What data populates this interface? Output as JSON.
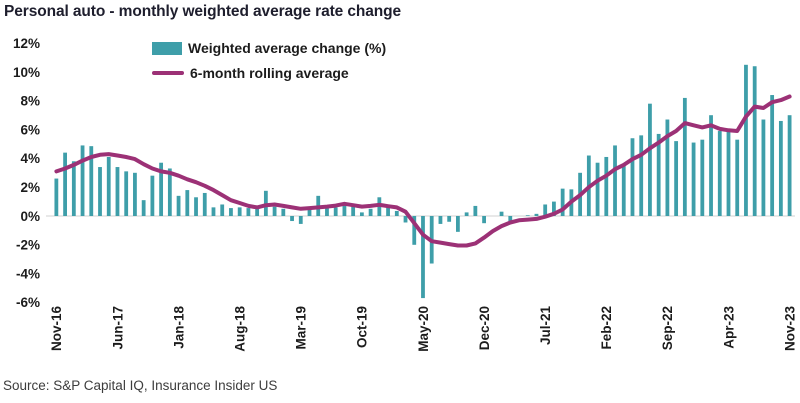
{
  "title": "Personal auto - monthly weighted average rate change",
  "source": "Source: S&P Capital IQ, Insurance Insider US",
  "legend": {
    "bar_label": "Weighted average change (%)",
    "line_label": "6-month rolling average"
  },
  "colors": {
    "bar": "#3E9EA9",
    "line": "#9C3176",
    "title_text": "#1E1E2D",
    "axis_text": "#1C1C1C",
    "zero_line": "#D9D9D9",
    "source_text": "#3D3D3D",
    "background": "#FFFFFF"
  },
  "chart_data": {
    "type": "bar",
    "title": "Personal auto - monthly weighted average rate change",
    "xlabel": "",
    "ylabel": "",
    "ylim": [
      -6.5,
      12
    ],
    "grid": false,
    "legend_position": "top-left-inset",
    "y_tick_values": [
      12,
      10,
      8,
      6,
      4,
      2,
      0,
      -2,
      -4,
      -6
    ],
    "y_tick_labels": [
      "12%",
      "10%",
      "8%",
      "6%",
      "4%",
      "2%",
      "0%",
      "-2%",
      "-4%",
      "-6%"
    ],
    "x_tick_indices": [
      0,
      7,
      14,
      21,
      28,
      35,
      42,
      49,
      56,
      63,
      70,
      77,
      84
    ],
    "x_tick_labels": [
      "Nov-16",
      "Jun-17",
      "Jan-18",
      "Aug-18",
      "Mar-19",
      "Oct-19",
      "May-20",
      "Dec-20",
      "Jul-21",
      "Feb-22",
      "Sep-22",
      "Apr-23",
      "Nov-23"
    ],
    "categories": [
      "Nov-16",
      "Dec-16",
      "Jan-17",
      "Feb-17",
      "Mar-17",
      "Apr-17",
      "May-17",
      "Jun-17",
      "Jul-17",
      "Aug-17",
      "Sep-17",
      "Oct-17",
      "Nov-17",
      "Dec-17",
      "Jan-18",
      "Feb-18",
      "Mar-18",
      "Apr-18",
      "May-18",
      "Jun-18",
      "Jul-18",
      "Aug-18",
      "Sep-18",
      "Oct-18",
      "Nov-18",
      "Dec-18",
      "Jan-19",
      "Feb-19",
      "Mar-19",
      "Apr-19",
      "May-19",
      "Jun-19",
      "Jul-19",
      "Aug-19",
      "Sep-19",
      "Oct-19",
      "Nov-19",
      "Dec-19",
      "Jan-20",
      "Feb-20",
      "Mar-20",
      "Apr-20",
      "May-20",
      "Jun-20",
      "Jul-20",
      "Aug-20",
      "Sep-20",
      "Oct-20",
      "Nov-20",
      "Dec-20",
      "Jan-21",
      "Feb-21",
      "Mar-21",
      "Apr-21",
      "May-21",
      "Jun-21",
      "Jul-21",
      "Aug-21",
      "Sep-21",
      "Oct-21",
      "Nov-21",
      "Dec-21",
      "Jan-22",
      "Feb-22",
      "Mar-22",
      "Apr-22",
      "May-22",
      "Jun-22",
      "Jul-22",
      "Aug-22",
      "Sep-22",
      "Oct-22",
      "Nov-22",
      "Dec-22",
      "Jan-23",
      "Feb-23",
      "Mar-23",
      "Apr-23",
      "May-23",
      "Jun-23",
      "Jul-23",
      "Aug-23",
      "Sep-23",
      "Oct-23",
      "Nov-23"
    ],
    "series": [
      {
        "name": "Weighted average change (%)",
        "type": "bar",
        "values": [
          2.6,
          4.4,
          3.8,
          4.9,
          4.85,
          3.4,
          4.1,
          3.4,
          3.1,
          3.0,
          1.1,
          2.8,
          3.7,
          3.3,
          1.4,
          1.8,
          1.3,
          1.6,
          0.6,
          0.8,
          0.55,
          0.6,
          0.55,
          0.6,
          1.75,
          0.65,
          0.5,
          -0.35,
          -0.55,
          0.45,
          1.4,
          0.7,
          0.6,
          0.8,
          0.7,
          0.25,
          0.5,
          1.3,
          0.6,
          0.35,
          -0.45,
          -2.0,
          -5.7,
          -3.3,
          -0.55,
          -0.4,
          -1.1,
          0.25,
          0.7,
          -0.5,
          0.0,
          0.3,
          -0.35,
          0.0,
          0.05,
          0.15,
          0.8,
          1.0,
          1.9,
          1.85,
          3.0,
          4.2,
          3.7,
          4.1,
          4.9,
          3.5,
          5.4,
          5.6,
          7.8,
          5.7,
          6.7,
          5.2,
          8.2,
          5.1,
          5.3,
          7.0,
          5.9,
          6.0,
          5.3,
          10.5,
          10.4,
          6.7,
          8.4,
          6.6,
          7.0
        ]
      },
      {
        "name": "6-month rolling average",
        "type": "line",
        "values": [
          3.1,
          3.3,
          3.55,
          3.85,
          4.1,
          4.25,
          4.3,
          4.2,
          4.1,
          3.95,
          3.6,
          3.3,
          3.1,
          3.0,
          2.8,
          2.55,
          2.35,
          2.1,
          1.8,
          1.45,
          1.1,
          0.9,
          0.7,
          0.6,
          0.75,
          0.8,
          0.7,
          0.6,
          0.5,
          0.55,
          0.6,
          0.65,
          0.72,
          0.85,
          0.75,
          0.65,
          0.7,
          0.78,
          0.68,
          0.6,
          0.3,
          -0.5,
          -1.3,
          -1.75,
          -1.85,
          -1.95,
          -2.05,
          -2.05,
          -1.9,
          -1.5,
          -1.05,
          -0.7,
          -0.45,
          -0.3,
          -0.25,
          -0.2,
          -0.05,
          0.15,
          0.45,
          1.0,
          1.45,
          2.0,
          2.45,
          2.8,
          3.25,
          3.55,
          3.95,
          4.25,
          4.7,
          5.1,
          5.55,
          5.9,
          6.45,
          6.3,
          6.15,
          6.3,
          6.05,
          5.95,
          5.9,
          6.9,
          7.6,
          7.5,
          7.9,
          8.05,
          8.3
        ]
      }
    ]
  }
}
